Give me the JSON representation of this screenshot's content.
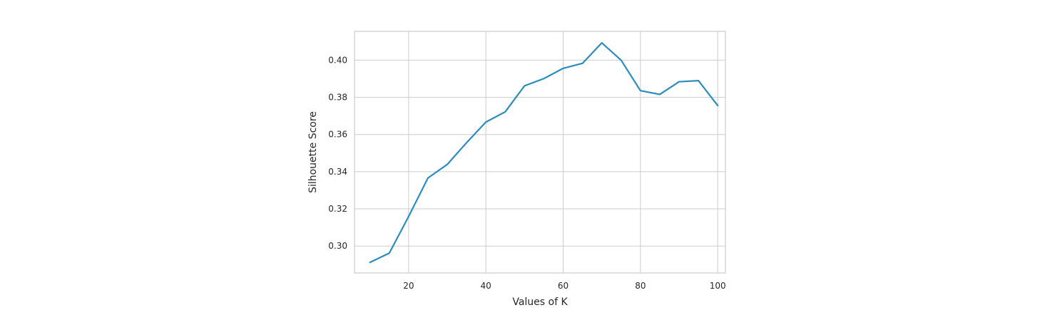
{
  "chart_data": {
    "type": "line",
    "title": "",
    "xlabel": "Values of K",
    "ylabel": "Silhouette Score",
    "xlim": [
      6,
      102
    ],
    "ylim": [
      0.2855,
      0.4155
    ],
    "xticks": [
      20,
      40,
      60,
      80,
      100
    ],
    "yticks": [
      0.3,
      0.32,
      0.34,
      0.36,
      0.38,
      0.4
    ],
    "grid": true,
    "legend": "none",
    "series": [
      {
        "color": "#2b8cbe",
        "x": [
          10,
          15,
          20,
          25,
          30,
          35,
          40,
          45,
          50,
          55,
          60,
          65,
          70,
          75,
          80,
          85,
          90,
          95,
          100
        ],
        "y": [
          0.2912,
          0.2962,
          0.3159,
          0.3366,
          0.3439,
          0.3556,
          0.3667,
          0.3722,
          0.3862,
          0.3901,
          0.3956,
          0.3983,
          0.4093,
          0.4,
          0.3836,
          0.3816,
          0.3884,
          0.389,
          0.3756
        ]
      }
    ],
    "colors": {
      "grid": "#cccccc",
      "frame": "#cccccc",
      "text": "#262626"
    }
  }
}
